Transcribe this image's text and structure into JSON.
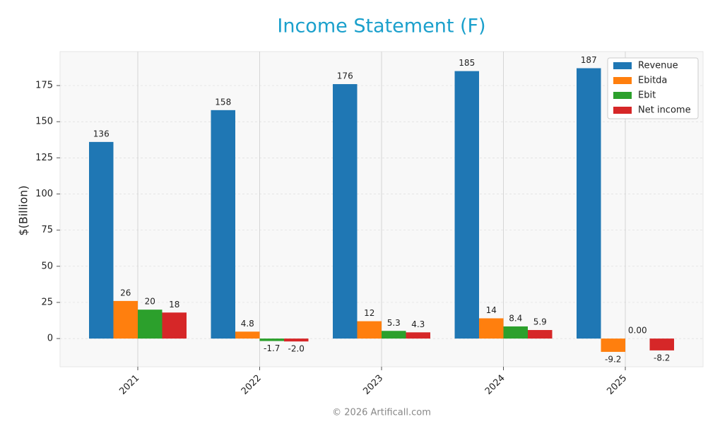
{
  "chart_data": {
    "type": "bar",
    "title": "Income Statement (F)",
    "y_label": "$(Billion)",
    "footer": "© 2026 Artificall.com",
    "categories": [
      "2021",
      "2022",
      "2023",
      "2024",
      "2025"
    ],
    "series": [
      {
        "name": "Revenue",
        "color": "#1f77b4",
        "values": [
          136,
          158,
          176,
          185,
          187
        ],
        "value_labels": [
          "136",
          "158",
          "176",
          "185",
          "187"
        ]
      },
      {
        "name": "Ebitda",
        "color": "#ff7f0e",
        "values": [
          26,
          4.8,
          12,
          14,
          -9.2
        ],
        "value_labels": [
          "26",
          "4.8",
          "12",
          "14",
          "-9.2"
        ]
      },
      {
        "name": "Ebit",
        "color": "#2ca02c",
        "values": [
          20,
          -1.7,
          5.3,
          8.4,
          0
        ],
        "value_labels": [
          "20",
          "-1.7",
          "5.3",
          "8.4",
          "0.00"
        ]
      },
      {
        "name": "Net income",
        "color": "#d62728",
        "values": [
          18,
          -2.0,
          4.3,
          5.9,
          -8.2
        ],
        "value_labels": [
          "18",
          "-2.0",
          "4.3",
          "5.9",
          "-8.2"
        ]
      }
    ],
    "ylim": [
      -19.5,
      198.5
    ],
    "yticks": [
      0,
      25,
      50,
      75,
      100,
      125,
      150,
      175
    ],
    "grid": true,
    "legend": "upper-right"
  }
}
